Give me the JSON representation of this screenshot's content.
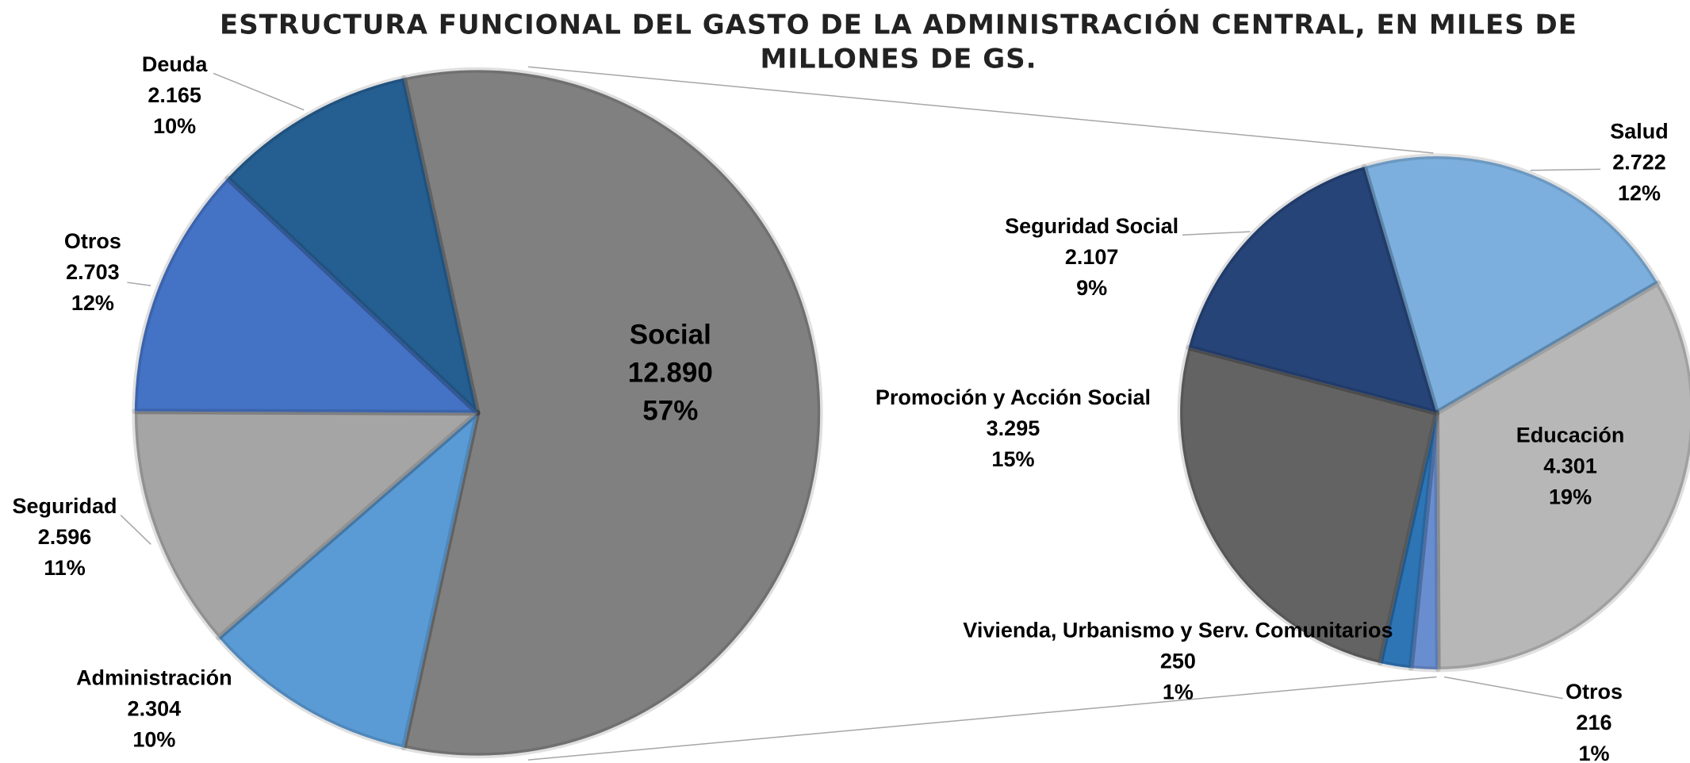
{
  "title_lines": [
    "ESTRUCTURA FUNCIONAL DEL GASTO DE LA ADMINISTRACIÓN CENTRAL, EN MILES DE",
    "MILLONES DE GS."
  ],
  "chart_data": [
    {
      "type": "pie",
      "categories": [
        "Social",
        "Administración",
        "Seguridad",
        "Otros",
        "Deuda"
      ],
      "values": [
        12890,
        2304,
        2596,
        2703,
        2165
      ],
      "value_labels": [
        "12.890",
        "2.304",
        "2.596",
        "2.703",
        "2.165"
      ],
      "percent_labels": [
        "57%",
        "10%",
        "11%",
        "12%",
        "10%"
      ],
      "colors": [
        "#808080",
        "#5b9bd5",
        "#a5a5a5",
        "#4472c4",
        "#255e91"
      ]
    },
    {
      "type": "pie",
      "categories": [
        "Salud",
        "Educación",
        "Otros",
        "Vivienda, Urbanismo y Serv. Comunitarios",
        "Promoción y Acción Social",
        "Seguridad Social"
      ],
      "values": [
        2722,
        4301,
        216,
        250,
        3295,
        2107
      ],
      "value_labels": [
        "2.722",
        "4.301",
        "216",
        "250",
        "3.295",
        "2.107"
      ],
      "percent_labels": [
        "12%",
        "19%",
        "1%",
        "1%",
        "15%",
        "9%"
      ],
      "colors": [
        "#7cafdd",
        "#b7b7b7",
        "#698ed0",
        "#2e75b6",
        "#636363",
        "#264478"
      ]
    }
  ]
}
